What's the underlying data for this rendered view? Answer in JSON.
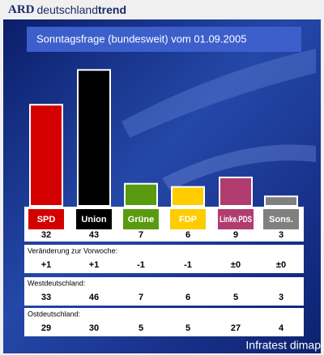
{
  "header": {
    "brand": "ARD",
    "name": "deutschland",
    "name_bold": "trend"
  },
  "chart_data": {
    "type": "bar",
    "title": "Sonntagsfrage (bundesweit) vom 01.09.2005",
    "categories": [
      "SPD",
      "Union",
      "Grüne",
      "FDP",
      "Linke.PDS",
      "Sons."
    ],
    "values": [
      32,
      43,
      7,
      6,
      9,
      3
    ],
    "colors": [
      "#d40000",
      "#000000",
      "#5a9a10",
      "#ffcc00",
      "#b03c70",
      "#808080"
    ]
  },
  "tables": [
    {
      "title": "Veränderung zur Vorwoche:",
      "values": [
        "+1",
        "+1",
        "-1",
        "-1",
        "±0",
        "±0"
      ]
    },
    {
      "title": "Westdeutschland:",
      "values": [
        33,
        46,
        7,
        6,
        5,
        3
      ]
    },
    {
      "title": "Ostdeutschland:",
      "values": [
        29,
        30,
        5,
        5,
        27,
        4
      ]
    }
  ],
  "footer": "Infratest dimap"
}
